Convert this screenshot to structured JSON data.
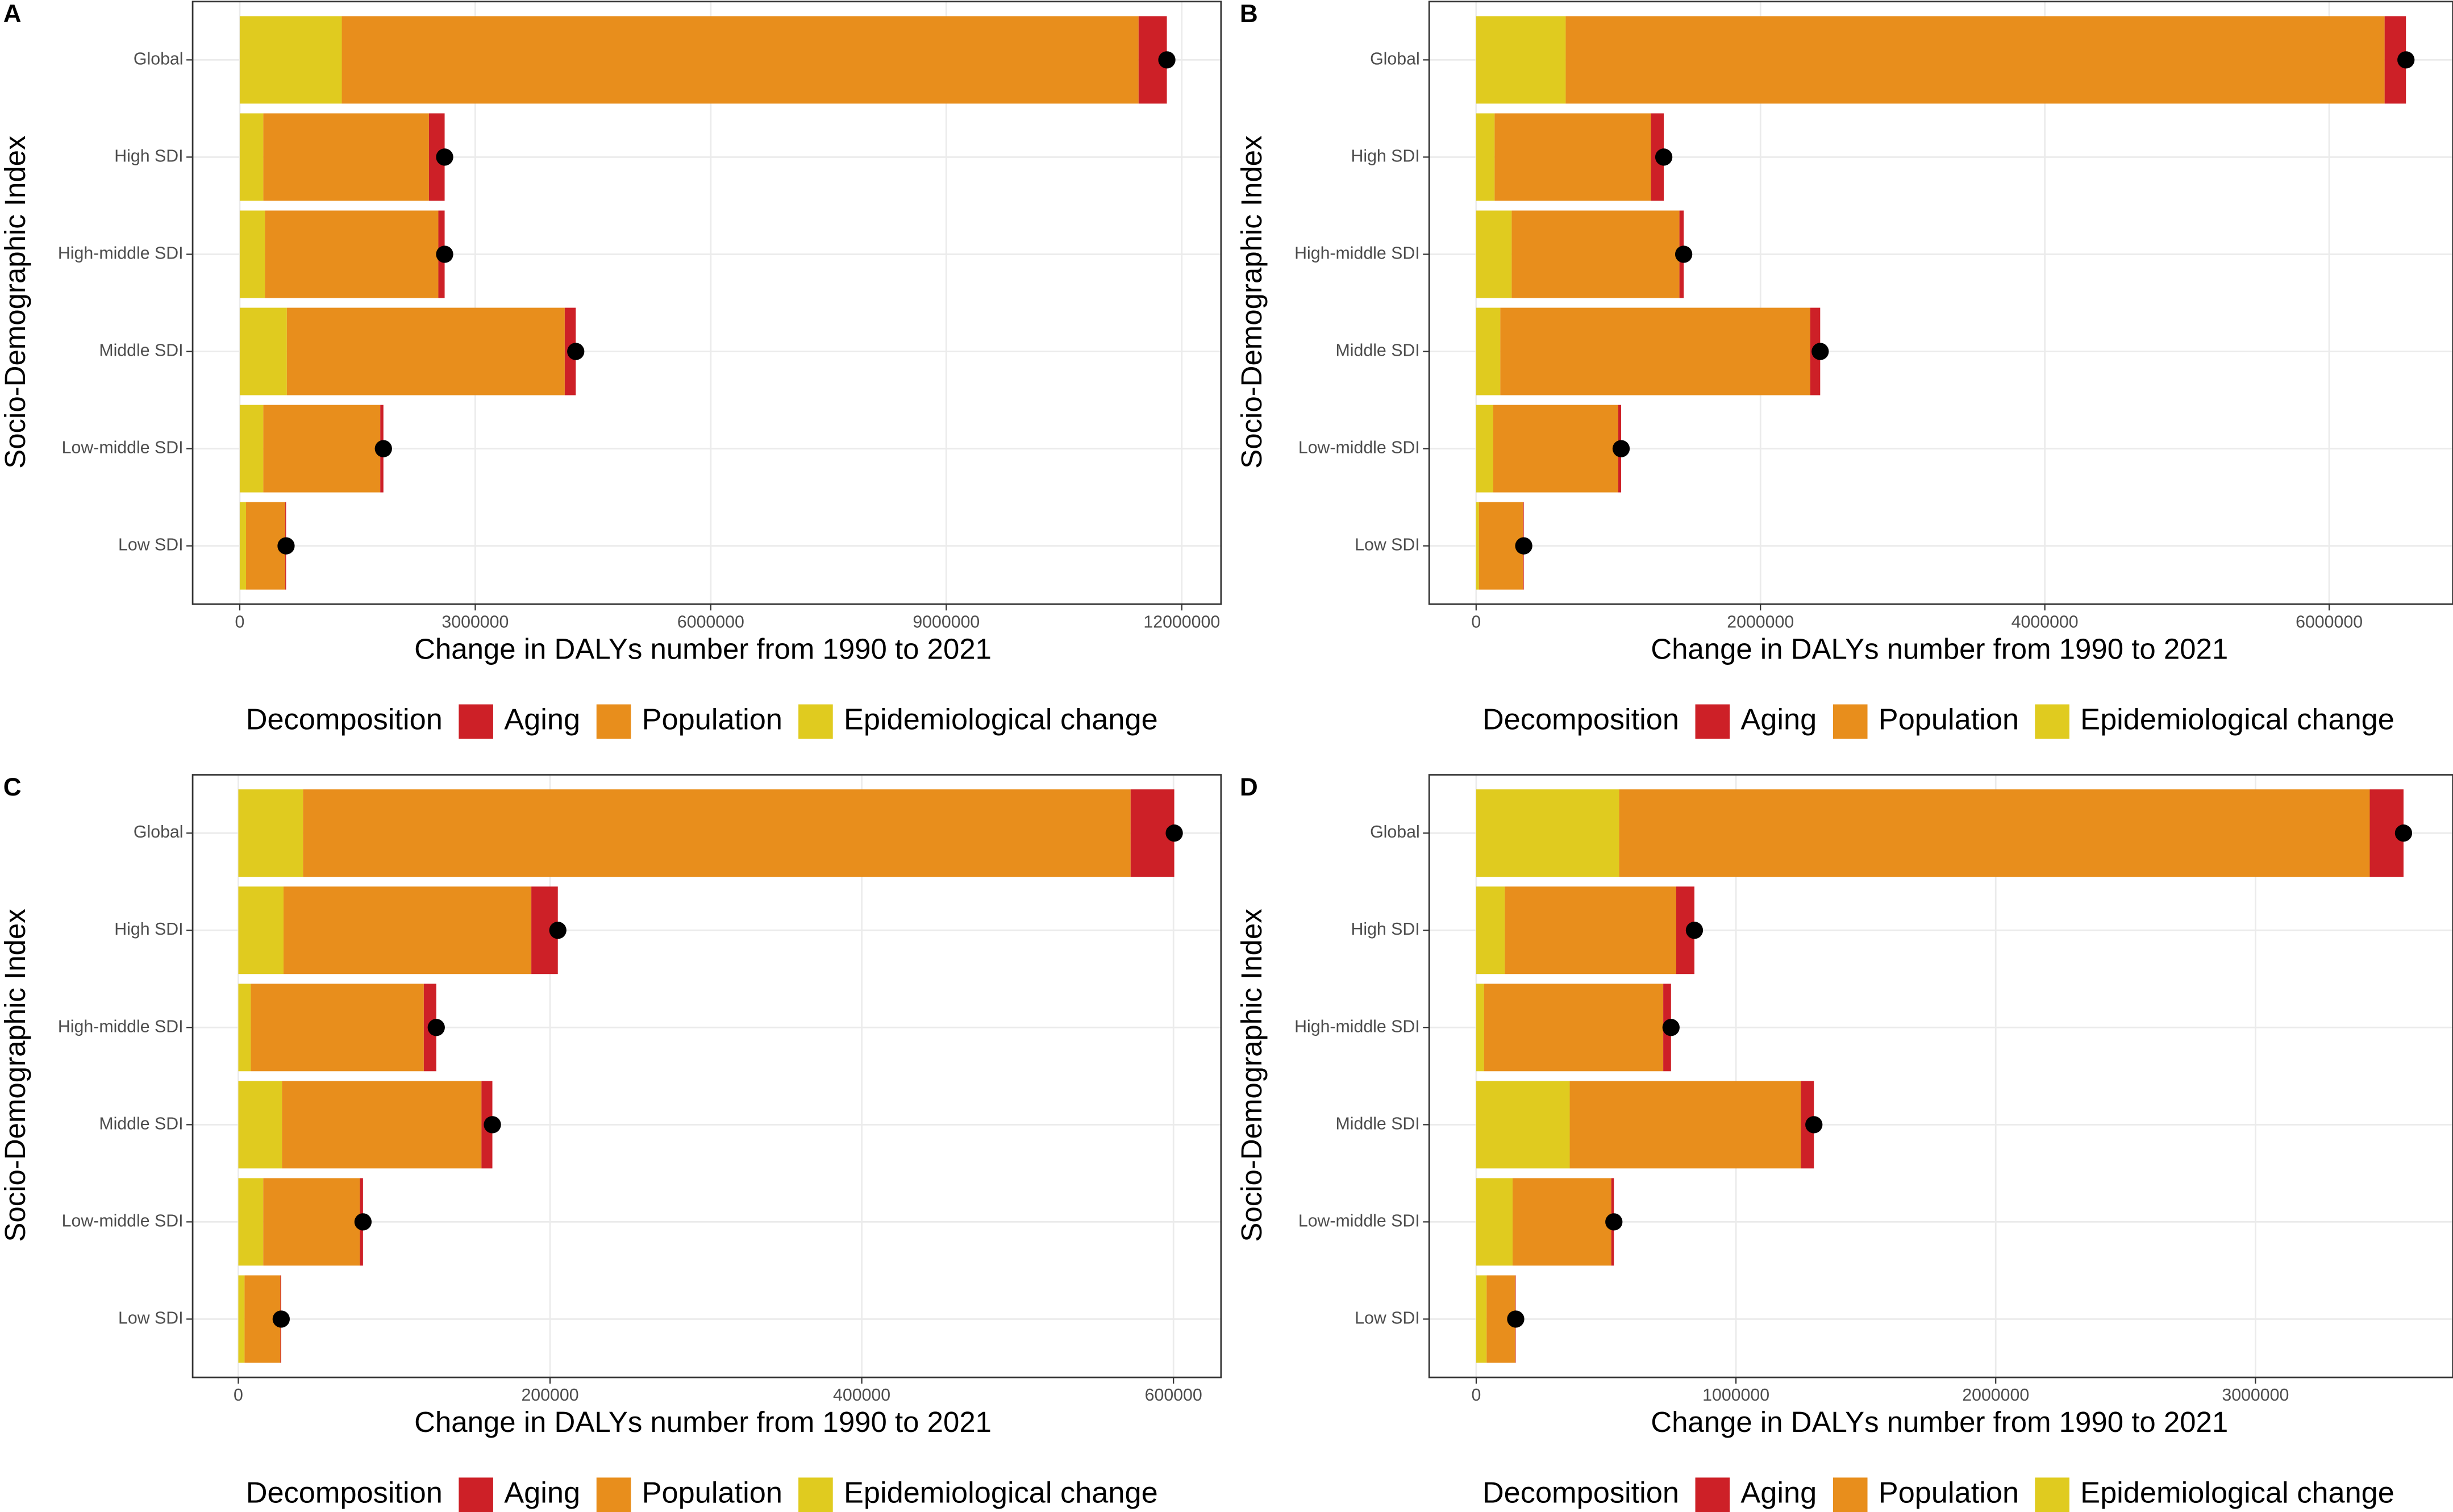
{
  "chart_data": [
    {
      "type": "bar",
      "orientation": "horizontal",
      "label": "A",
      "ylabel": "Socio-Demographic Index",
      "xlabel": "Change in DALYs number from 1990 to 2021",
      "legend_title": "Decomposition",
      "categories": [
        "Global",
        "High SDI",
        "High-middle SDI",
        "Middle SDI",
        "Low-middle SDI",
        "Low SDI"
      ],
      "series": [
        {
          "name": "Aging",
          "color": "#cd2027",
          "values": [
            360000,
            200000,
            80000,
            140000,
            40000,
            10000
          ]
        },
        {
          "name": "Population",
          "color": "#e88e1c",
          "values": [
            10150000,
            2110000,
            2210000,
            3540000,
            1490000,
            500000
          ]
        },
        {
          "name": "Epidemiological change",
          "color": "#e0cb1f",
          "values": [
            1300000,
            300000,
            320000,
            600000,
            300000,
            80000
          ]
        }
      ],
      "xlim": [
        -600000,
        12500000
      ],
      "xticks": [
        0,
        3000000,
        6000000,
        9000000,
        12000000
      ],
      "grid": true
    },
    {
      "type": "bar",
      "orientation": "horizontal",
      "label": "B",
      "ylabel": "Socio-Demographic Index",
      "xlabel": "Change in DALYs number from 1990 to 2021",
      "legend_title": "Decomposition",
      "categories": [
        "Global",
        "High SDI",
        "High-middle SDI",
        "Middle SDI",
        "Low-middle SDI",
        "Low SDI"
      ],
      "series": [
        {
          "name": "Aging",
          "color": "#cd2027",
          "values": [
            150000,
            90000,
            30000,
            70000,
            20000,
            5000
          ]
        },
        {
          "name": "Population",
          "color": "#e88e1c",
          "values": [
            5760000,
            1100000,
            1180000,
            2180000,
            880000,
            310000
          ]
        },
        {
          "name": "Epidemiological change",
          "color": "#e0cb1f",
          "values": [
            630000,
            130000,
            250000,
            170000,
            120000,
            20000
          ]
        }
      ],
      "xlim": [
        -330000,
        6870000
      ],
      "xticks": [
        0,
        2000000,
        4000000,
        6000000
      ],
      "grid": true
    },
    {
      "type": "bar",
      "orientation": "horizontal",
      "label": "C",
      "ylabel": "Socio-Demographic Index",
      "xlabel": "Change in DALYs number from 1990 to 2021",
      "legend_title": "Decomposition",
      "categories": [
        "Global",
        "High SDI",
        "High-middle SDI",
        "Middle SDI",
        "Low-middle SDI",
        "Low SDI"
      ],
      "series": [
        {
          "name": "Aging",
          "color": "#cd2027",
          "values": [
            28000,
            17000,
            8000,
            7000,
            2000,
            500
          ]
        },
        {
          "name": "Population",
          "color": "#e88e1c",
          "values": [
            531000,
            159000,
            111000,
            128000,
            62000,
            23000
          ]
        },
        {
          "name": "Epidemiological change",
          "color": "#e0cb1f",
          "values": [
            41500,
            29000,
            8000,
            28000,
            16000,
            4000
          ]
        }
      ],
      "xlim": [
        -29300,
        630500
      ],
      "xticks": [
        0,
        200000,
        400000,
        600000
      ],
      "grid": true
    },
    {
      "type": "bar",
      "orientation": "horizontal",
      "label": "D",
      "ylabel": "Socio-Demographic Index",
      "xlabel": "Change in DALYs number from 1990 to 2021",
      "legend_title": "Decomposition",
      "categories": [
        "Global",
        "High SDI",
        "High-middle SDI",
        "Middle SDI",
        "Low-middle SDI",
        "Low SDI"
      ],
      "series": [
        {
          "name": "Aging",
          "color": "#cd2027",
          "values": [
            130000,
            70000,
            30000,
            50000,
            10000,
            2000
          ]
        },
        {
          "name": "Population",
          "color": "#e88e1c",
          "values": [
            2890000,
            660000,
            690000,
            890000,
            380000,
            110000
          ]
        },
        {
          "name": "Epidemiological change",
          "color": "#e0cb1f",
          "values": [
            550000,
            110000,
            30000,
            360000,
            140000,
            40000
          ]
        }
      ],
      "xlim": [
        -181000,
        3760000
      ],
      "xticks": [
        0,
        1000000,
        2000000,
        3000000
      ],
      "grid": true
    }
  ]
}
